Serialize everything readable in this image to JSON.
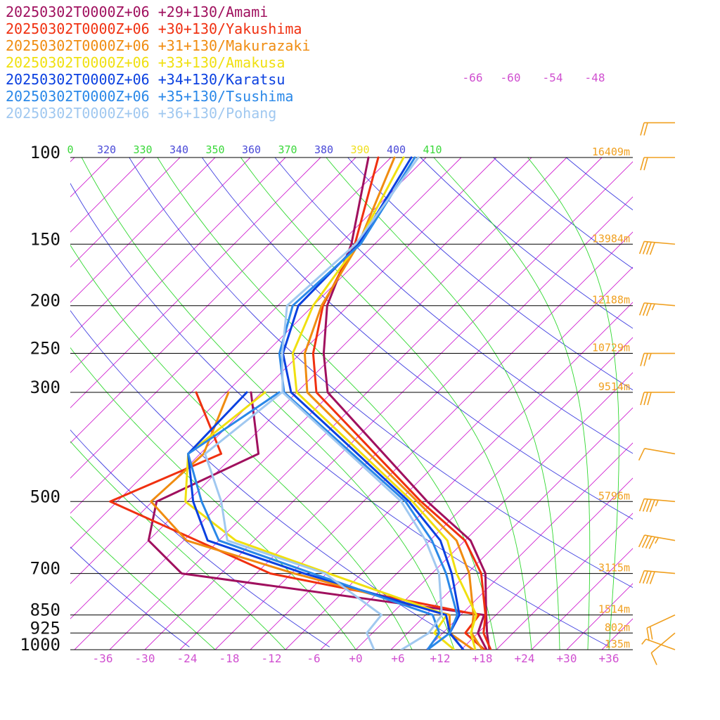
{
  "chart_data": {
    "type": "line",
    "title": "",
    "xlabel": "",
    "ylabel": "",
    "grid": true,
    "legend_position": "top-left",
    "pressure_levels": [
      100,
      150,
      200,
      250,
      300,
      500,
      700,
      850,
      925,
      1000
    ],
    "pressure_labels": [
      "100",
      "150",
      "200",
      "250",
      "300",
      "500",
      "700",
      "850",
      "925",
      "1000"
    ],
    "heights": [
      {
        "p": 100,
        "label": "16409m"
      },
      {
        "p": 150,
        "label": "13984m"
      },
      {
        "p": 200,
        "label": "12188m"
      },
      {
        "p": 250,
        "label": "10729m"
      },
      {
        "p": 300,
        "label": "9514m"
      },
      {
        "p": 500,
        "label": "5796m"
      },
      {
        "p": 700,
        "label": "3115m"
      },
      {
        "p": 850,
        "label": "1514m"
      },
      {
        "p": 925,
        "label": "802m"
      },
      {
        "p": 1000,
        "label": "135m"
      }
    ],
    "temperature_ticks": [
      "-36",
      "-30",
      "-24",
      "-18",
      "-12",
      "-6",
      "+0",
      "+6",
      "+12",
      "+18",
      "+24",
      "+30",
      "+36"
    ],
    "temperature_tick_values": [
      -36,
      -30,
      -24,
      -18,
      -12,
      -6,
      0,
      6,
      12,
      18,
      24,
      30,
      36
    ],
    "upper_isotherm_labels": [
      "-66",
      "-60",
      "-54",
      "-48"
    ],
    "theta_labels": [
      "0",
      "320",
      "330",
      "340",
      "350",
      "360",
      "370",
      "380",
      "390",
      "400",
      "410"
    ],
    "theta_label_colors": [
      "#3ad83a",
      "#4a4ad8",
      "#3ad83a",
      "#4a4ad8",
      "#3ad83a",
      "#4a4ad8",
      "#3ad83a",
      "#4a4ad8",
      "#f0e020",
      "#4a4ad8",
      "#3ad83a"
    ],
    "colors": {
      "isotherm": "#d020d0",
      "isobar": "#000000",
      "dry_adiabat": "#4040e0",
      "moist_adiabat": "#30d830",
      "height_label": "#f0a020",
      "axis_label": "#d050d0",
      "wind_barb": "#f0a020"
    },
    "series": [
      {
        "name": "20250302T0000Z+06 +29+130/Amami",
        "color": "#a0105e",
        "temperature": [
          [
            100,
            -68.2
          ],
          [
            150,
            -58.3
          ],
          [
            200,
            -53.0
          ],
          [
            250,
            -46.7
          ],
          [
            300,
            -40.6
          ],
          [
            500,
            -10.9
          ],
          [
            600,
            0.8
          ],
          [
            700,
            7.6
          ],
          [
            850,
            13.6
          ],
          [
            925,
            16.3
          ],
          [
            1000,
            19.0
          ]
        ],
        "dewpoint": [
          [
            300,
            -51.5
          ],
          [
            400,
            -41.7
          ],
          [
            500,
            -49.4
          ],
          [
            600,
            -45.0
          ],
          [
            700,
            -35.6
          ],
          [
            850,
            13.3
          ],
          [
            925,
            15.0
          ],
          [
            1000,
            18.6
          ]
        ]
      },
      {
        "name": "20250302T0000Z+06 +30+130/Yakushima",
        "color": "#f03010",
        "temperature": [
          [
            100,
            -66.8
          ],
          [
            150,
            -57.8
          ],
          [
            200,
            -53.6
          ],
          [
            250,
            -48.2
          ],
          [
            300,
            -42.2
          ],
          [
            500,
            -11.8
          ],
          [
            600,
            0.0
          ],
          [
            700,
            7.0
          ],
          [
            850,
            13.5
          ],
          [
            925,
            15.8
          ],
          [
            1000,
            19.2
          ]
        ],
        "dewpoint": [
          [
            300,
            -59.3
          ],
          [
            400,
            -47.0
          ],
          [
            500,
            -56.0
          ],
          [
            700,
            -23.0
          ],
          [
            850,
            12.6
          ],
          [
            925,
            13.2
          ],
          [
            1000,
            18.3
          ]
        ]
      },
      {
        "name": "20250302T0000Z+06 +31+130/Makurazaki",
        "color": "#f08c10",
        "temperature": [
          [
            100,
            -64.5
          ],
          [
            150,
            -57.3
          ],
          [
            200,
            -53.8
          ],
          [
            250,
            -49.4
          ],
          [
            300,
            -43.5
          ],
          [
            500,
            -12.3
          ],
          [
            600,
            -1.2
          ],
          [
            700,
            5.3
          ],
          [
            850,
            11.8
          ],
          [
            925,
            14.1
          ],
          [
            1000,
            18.0
          ]
        ],
        "dewpoint": [
          [
            300,
            -54.7
          ],
          [
            400,
            -49.5
          ],
          [
            500,
            -50.2
          ],
          [
            600,
            -39.6
          ],
          [
            700,
            -19.6
          ],
          [
            850,
            8.4
          ],
          [
            925,
            11.0
          ],
          [
            1000,
            16.7
          ]
        ]
      },
      {
        "name": "20250302T0000Z+06 +33+130/Amakusa",
        "color": "#f0e010",
        "temperature": [
          [
            100,
            -63.2
          ],
          [
            150,
            -57.4
          ],
          [
            200,
            -55.0
          ],
          [
            250,
            -51.1
          ],
          [
            300,
            -45.0
          ],
          [
            500,
            -13.0
          ],
          [
            600,
            -2.5
          ],
          [
            700,
            3.5
          ],
          [
            850,
            12.2
          ],
          [
            925,
            14.0
          ],
          [
            1000,
            17.0
          ]
        ],
        "dewpoint": [
          [
            300,
            -49.5
          ],
          [
            400,
            -51.7
          ],
          [
            500,
            -45.3
          ],
          [
            600,
            -32.6
          ],
          [
            700,
            -14.7
          ],
          [
            850,
            8.0
          ],
          [
            925,
            8.8
          ],
          [
            1000,
            14.0
          ]
        ]
      },
      {
        "name": "20250302T0000Z+06 +34+130/Karatsu",
        "color": "#0a40e0",
        "temperature": [
          [
            100,
            -62.1
          ],
          [
            150,
            -57.3
          ],
          [
            200,
            -57.1
          ],
          [
            250,
            -52.5
          ],
          [
            300,
            -45.8
          ],
          [
            500,
            -13.5
          ],
          [
            600,
            -3.5
          ],
          [
            700,
            2.8
          ],
          [
            850,
            9.8
          ],
          [
            925,
            11.0
          ],
          [
            1000,
            15.3
          ]
        ],
        "dewpoint": [
          [
            300,
            -52.1
          ],
          [
            400,
            -51.7
          ],
          [
            500,
            -44.2
          ],
          [
            600,
            -36.6
          ],
          [
            700,
            -18.2
          ],
          [
            850,
            7.9
          ],
          [
            925,
            11.0
          ],
          [
            1000,
            15.3
          ]
        ]
      },
      {
        "name": "20250302T0000Z+06 +35+130/Tsushima",
        "color": "#2a88e8",
        "temperature": [
          [
            100,
            -61.6
          ],
          [
            150,
            -57.0
          ],
          [
            200,
            -57.9
          ],
          [
            250,
            -53.0
          ],
          [
            300,
            -46.8
          ],
          [
            500,
            -14.0
          ],
          [
            600,
            -4.7
          ],
          [
            700,
            2.0
          ],
          [
            850,
            9.5
          ],
          [
            925,
            11.0
          ],
          [
            1000,
            10.2
          ]
        ],
        "dewpoint": [
          [
            300,
            -47.5
          ],
          [
            400,
            -51.7
          ],
          [
            500,
            -43.0
          ],
          [
            600,
            -35.0
          ],
          [
            700,
            -17.0
          ],
          [
            850,
            6.0
          ],
          [
            925,
            9.5
          ],
          [
            1000,
            10.2
          ]
        ]
      },
      {
        "name": "20250302T0000Z+06 +36+130/Pohang",
        "color": "#a0c8f0",
        "temperature": [
          [
            100,
            -61.1
          ],
          [
            150,
            -57.7
          ],
          [
            200,
            -58.7
          ],
          [
            250,
            -52.6
          ],
          [
            300,
            -47.0
          ],
          [
            500,
            -14.6
          ],
          [
            600,
            -5.6
          ],
          [
            700,
            1.0
          ],
          [
            850,
            7.3
          ],
          [
            925,
            8.0
          ],
          [
            1000,
            6.5
          ]
        ],
        "dewpoint": [
          [
            300,
            -47.1
          ],
          [
            400,
            -49.3
          ],
          [
            500,
            -40.2
          ],
          [
            600,
            -33.8
          ],
          [
            700,
            -15.2
          ],
          [
            850,
            -1.3
          ],
          [
            925,
            -0.8
          ],
          [
            1000,
            2.6
          ]
        ]
      }
    ],
    "wind_barbs": [
      {
        "p": 85,
        "dir": 270,
        "speed": 20
      },
      {
        "p": 100,
        "dir": 270,
        "speed": 20
      },
      {
        "p": 150,
        "dir": 275,
        "speed": 40
      },
      {
        "p": 200,
        "dir": 275,
        "speed": 35
      },
      {
        "p": 250,
        "dir": 270,
        "speed": 25
      },
      {
        "p": 300,
        "dir": 270,
        "speed": 30
      },
      {
        "p": 400,
        "dir": 280,
        "speed": 10
      },
      {
        "p": 500,
        "dir": 275,
        "speed": 45
      },
      {
        "p": 600,
        "dir": 280,
        "speed": 45
      },
      {
        "p": 700,
        "dir": 275,
        "speed": 40
      },
      {
        "p": 850,
        "dir": 245,
        "speed": 20
      },
      {
        "p": 925,
        "dir": 230,
        "speed": 10
      },
      {
        "p": 1000,
        "dir": 290,
        "speed": 5
      }
    ]
  }
}
